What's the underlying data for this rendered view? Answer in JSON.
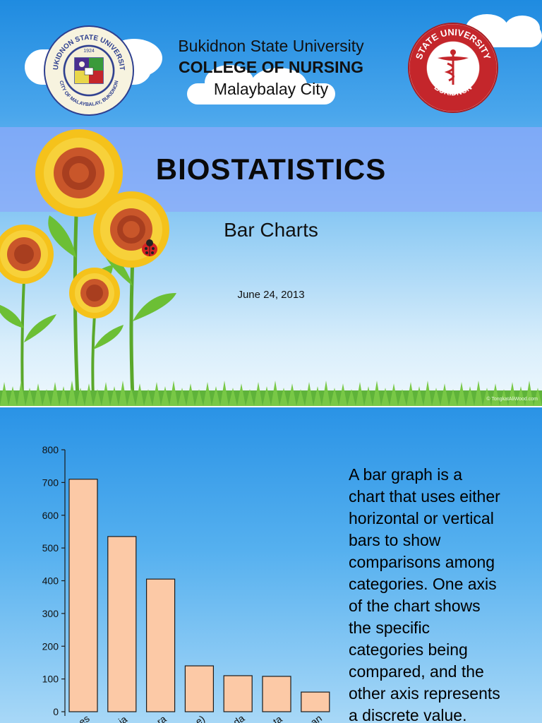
{
  "slide1": {
    "university": "Bukidnon State University",
    "college": "COLLEGE OF NURSING",
    "city": "Malaybalay City",
    "title": "BIOSTATISTICS",
    "subtitle": "Bar Charts",
    "date": "June 24, 2013",
    "seal_left_text": "BUKIDNON STATE UNIVERSITY",
    "seal_left_year": "1924",
    "seal_left_bottom": "CITY OF MALAYBALAY, BUKIDNON",
    "seal_right_text": "STATE UNIVERSITY",
    "seal_right_bottom": "BUKIDNON",
    "watermark": "© TongkatAliWood.com"
  },
  "slide2": {
    "description_lines": [
      "A bar graph is a",
      "chart that uses either",
      "horizontal or vertical",
      "bars to show",
      "comparisons among",
      "categories. One axis",
      "of the chart shows",
      "the specific",
      "categories being",
      "compared, and the",
      "other axis represents",
      "a discrete value."
    ]
  },
  "chart_data": {
    "type": "bar",
    "categories": [
      "es",
      "ia",
      "ra",
      "e)",
      "da",
      "ta",
      "an"
    ],
    "values": [
      710,
      535,
      405,
      140,
      110,
      108,
      60
    ],
    "ylim": [
      0,
      800
    ],
    "yticks": [
      0,
      100,
      200,
      300,
      400,
      500,
      600,
      700,
      800
    ],
    "bar_color": "#fcc9a6",
    "grid": false
  },
  "colors": {
    "band": "#8caafa",
    "sky_top": "#1f8be0",
    "bar_stroke": "#1a1a1a"
  }
}
